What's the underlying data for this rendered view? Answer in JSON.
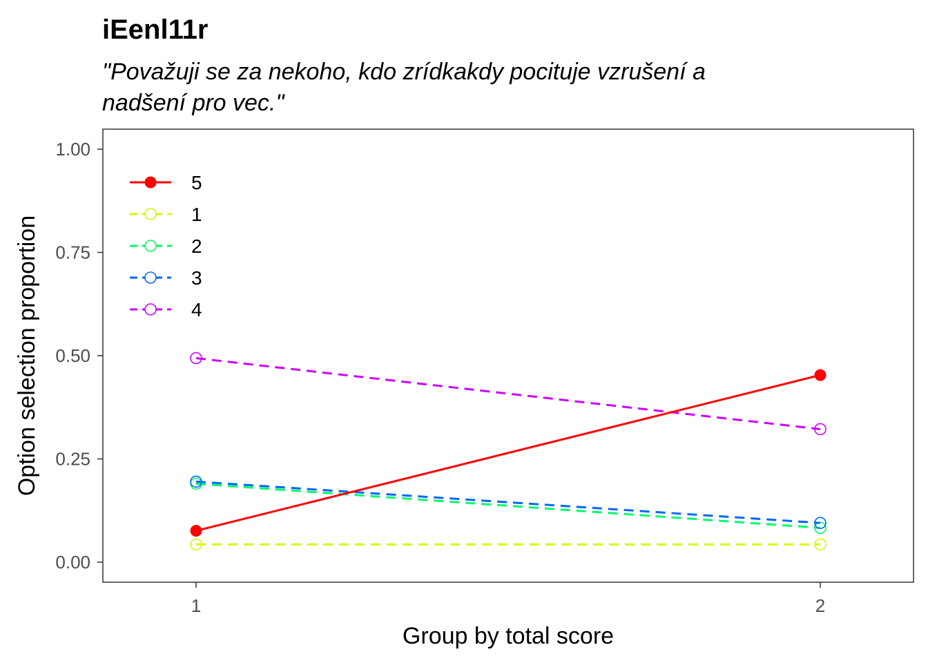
{
  "chart_data": {
    "type": "line",
    "title": "iEenl11r",
    "subtitle_lines": [
      "\"Považuji se za nekoho, kdo zrídkakdy pocituje vzrušení a",
      " nadšení pro vec.\""
    ],
    "xlabel": "Group by total score",
    "ylabel": "Option selection proportion",
    "categories": [
      "1",
      "2"
    ],
    "ylim": [
      0,
      1
    ],
    "yticks": [
      0.0,
      0.25,
      0.5,
      0.75,
      1.0
    ],
    "ytick_labels": [
      "0.00",
      "0.25",
      "0.50",
      "0.75",
      "1.00"
    ],
    "grid": false,
    "legend_position": "top-left",
    "series": [
      {
        "name": "5",
        "values": [
          0.076,
          0.453
        ],
        "color": "#ff0000",
        "style": "solid",
        "marker": "filled-circle"
      },
      {
        "name": "1",
        "values": [
          0.043,
          0.043
        ],
        "color": "#ccff00",
        "style": "dashed",
        "marker": "open-circle"
      },
      {
        "name": "2",
        "values": [
          0.19,
          0.083
        ],
        "color": "#00ff66",
        "style": "dashed",
        "marker": "open-circle"
      },
      {
        "name": "3",
        "values": [
          0.195,
          0.095
        ],
        "color": "#0066ff",
        "style": "dashed",
        "marker": "open-circle"
      },
      {
        "name": "4",
        "values": [
          0.494,
          0.322
        ],
        "color": "#cc00ff",
        "style": "dashed",
        "marker": "open-circle"
      }
    ]
  }
}
